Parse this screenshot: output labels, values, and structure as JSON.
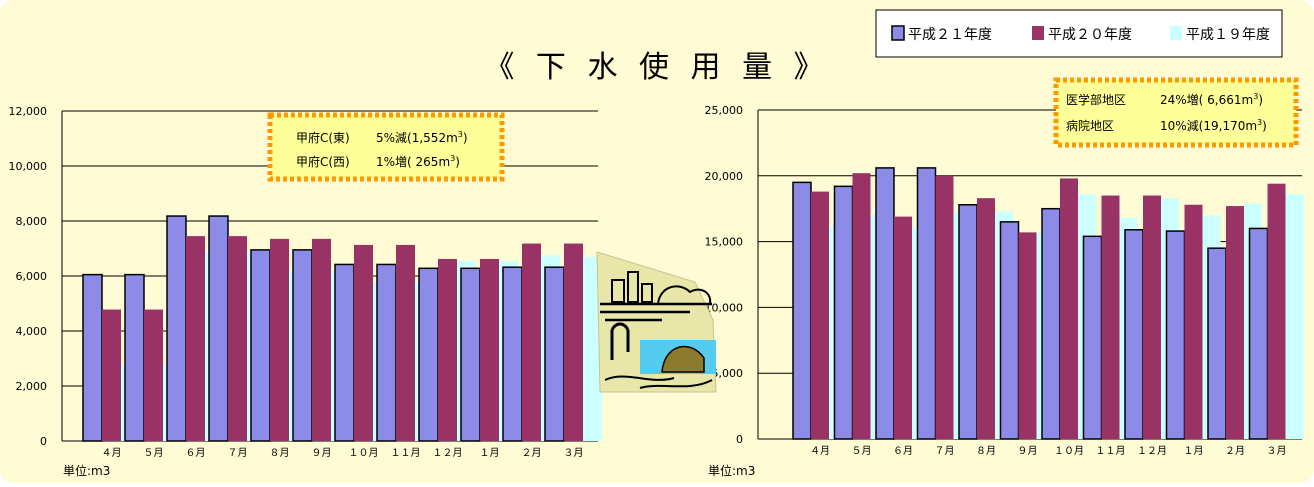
{
  "title": "《 下 水 使 用 量 》",
  "legend": [
    {
      "label": "平成２１年度",
      "color": "#8c8ce8"
    },
    {
      "label": "平成２０年度",
      "color": "#993366"
    },
    {
      "label": "平成１９年度",
      "color": "#ccffff"
    }
  ],
  "colors": {
    "background": "#fffbd5",
    "annotation_border": "#ff9900",
    "annotation_fill": "#ffff99"
  },
  "icon": "sewage-illustration-icon",
  "chart_data": [
    {
      "type": "bar",
      "categories": [
        "４月",
        "５月",
        "６月",
        "７月",
        "８月",
        "９月",
        "１０月",
        "１１月",
        "１２月",
        "１月",
        "２月",
        "３月"
      ],
      "series": [
        {
          "name": "平成２１年度",
          "values": [
            6050,
            6050,
            8180,
            8180,
            6950,
            6950,
            6420,
            6420,
            6280,
            6280,
            6320,
            6320
          ]
        },
        {
          "name": "平成２０年度",
          "values": [
            4780,
            4780,
            7450,
            7450,
            7350,
            7350,
            7130,
            7130,
            6620,
            6620,
            7180,
            7180
          ]
        },
        {
          "name": "平成１９年度",
          "values": [
            2800,
            2800,
            6880,
            6880,
            6180,
            6180,
            5780,
            5780,
            6550,
            6550,
            6760,
            6700
          ]
        }
      ],
      "ylim": [
        0,
        12000
      ],
      "yticks": [
        "0",
        "2,000",
        "4,000",
        "6,000",
        "8,000",
        "10,000",
        "12,000"
      ],
      "unit": "単位:m3",
      "annotations": [
        {
          "name": "甲府C(東)",
          "change": "5%減(1,552m",
          "sup": "3",
          "close": ")"
        },
        {
          "name": "甲府C(西)",
          "change": "1%増(  265m",
          "sup": "3",
          "close": ")"
        }
      ]
    },
    {
      "type": "bar",
      "categories": [
        "４月",
        "５月",
        "６月",
        "７月",
        "８月",
        "９月",
        "１０月",
        "１１月",
        "１２月",
        "１月",
        "２月",
        "３月"
      ],
      "series": [
        {
          "name": "平成２１年度",
          "values": [
            19500,
            19200,
            20600,
            20600,
            17800,
            16500,
            17500,
            15400,
            15900,
            15800,
            14500,
            16000
          ]
        },
        {
          "name": "平成２０年度",
          "values": [
            18800,
            20200,
            16900,
            20000,
            18300,
            15700,
            19800,
            18500,
            18500,
            17800,
            17700,
            19400
          ]
        },
        {
          "name": "平成１９年度",
          "values": [
            16200,
            17100,
            16100,
            17300,
            17300,
            15700,
            18600,
            16800,
            18300,
            17000,
            17900,
            18600
          ]
        }
      ],
      "ylim": [
        0,
        25000
      ],
      "yticks": [
        "0",
        "5,000",
        "10,000",
        "15,000",
        "20,000",
        "25,000"
      ],
      "unit": "単位:m3",
      "annotations": [
        {
          "name": "医学部地区",
          "change": "24%増( 6,661m",
          "sup": "3",
          "close": ")"
        },
        {
          "name": "病院地区",
          "change": "10%減(19,170m",
          "sup": "3",
          "close": ")"
        }
      ]
    }
  ]
}
